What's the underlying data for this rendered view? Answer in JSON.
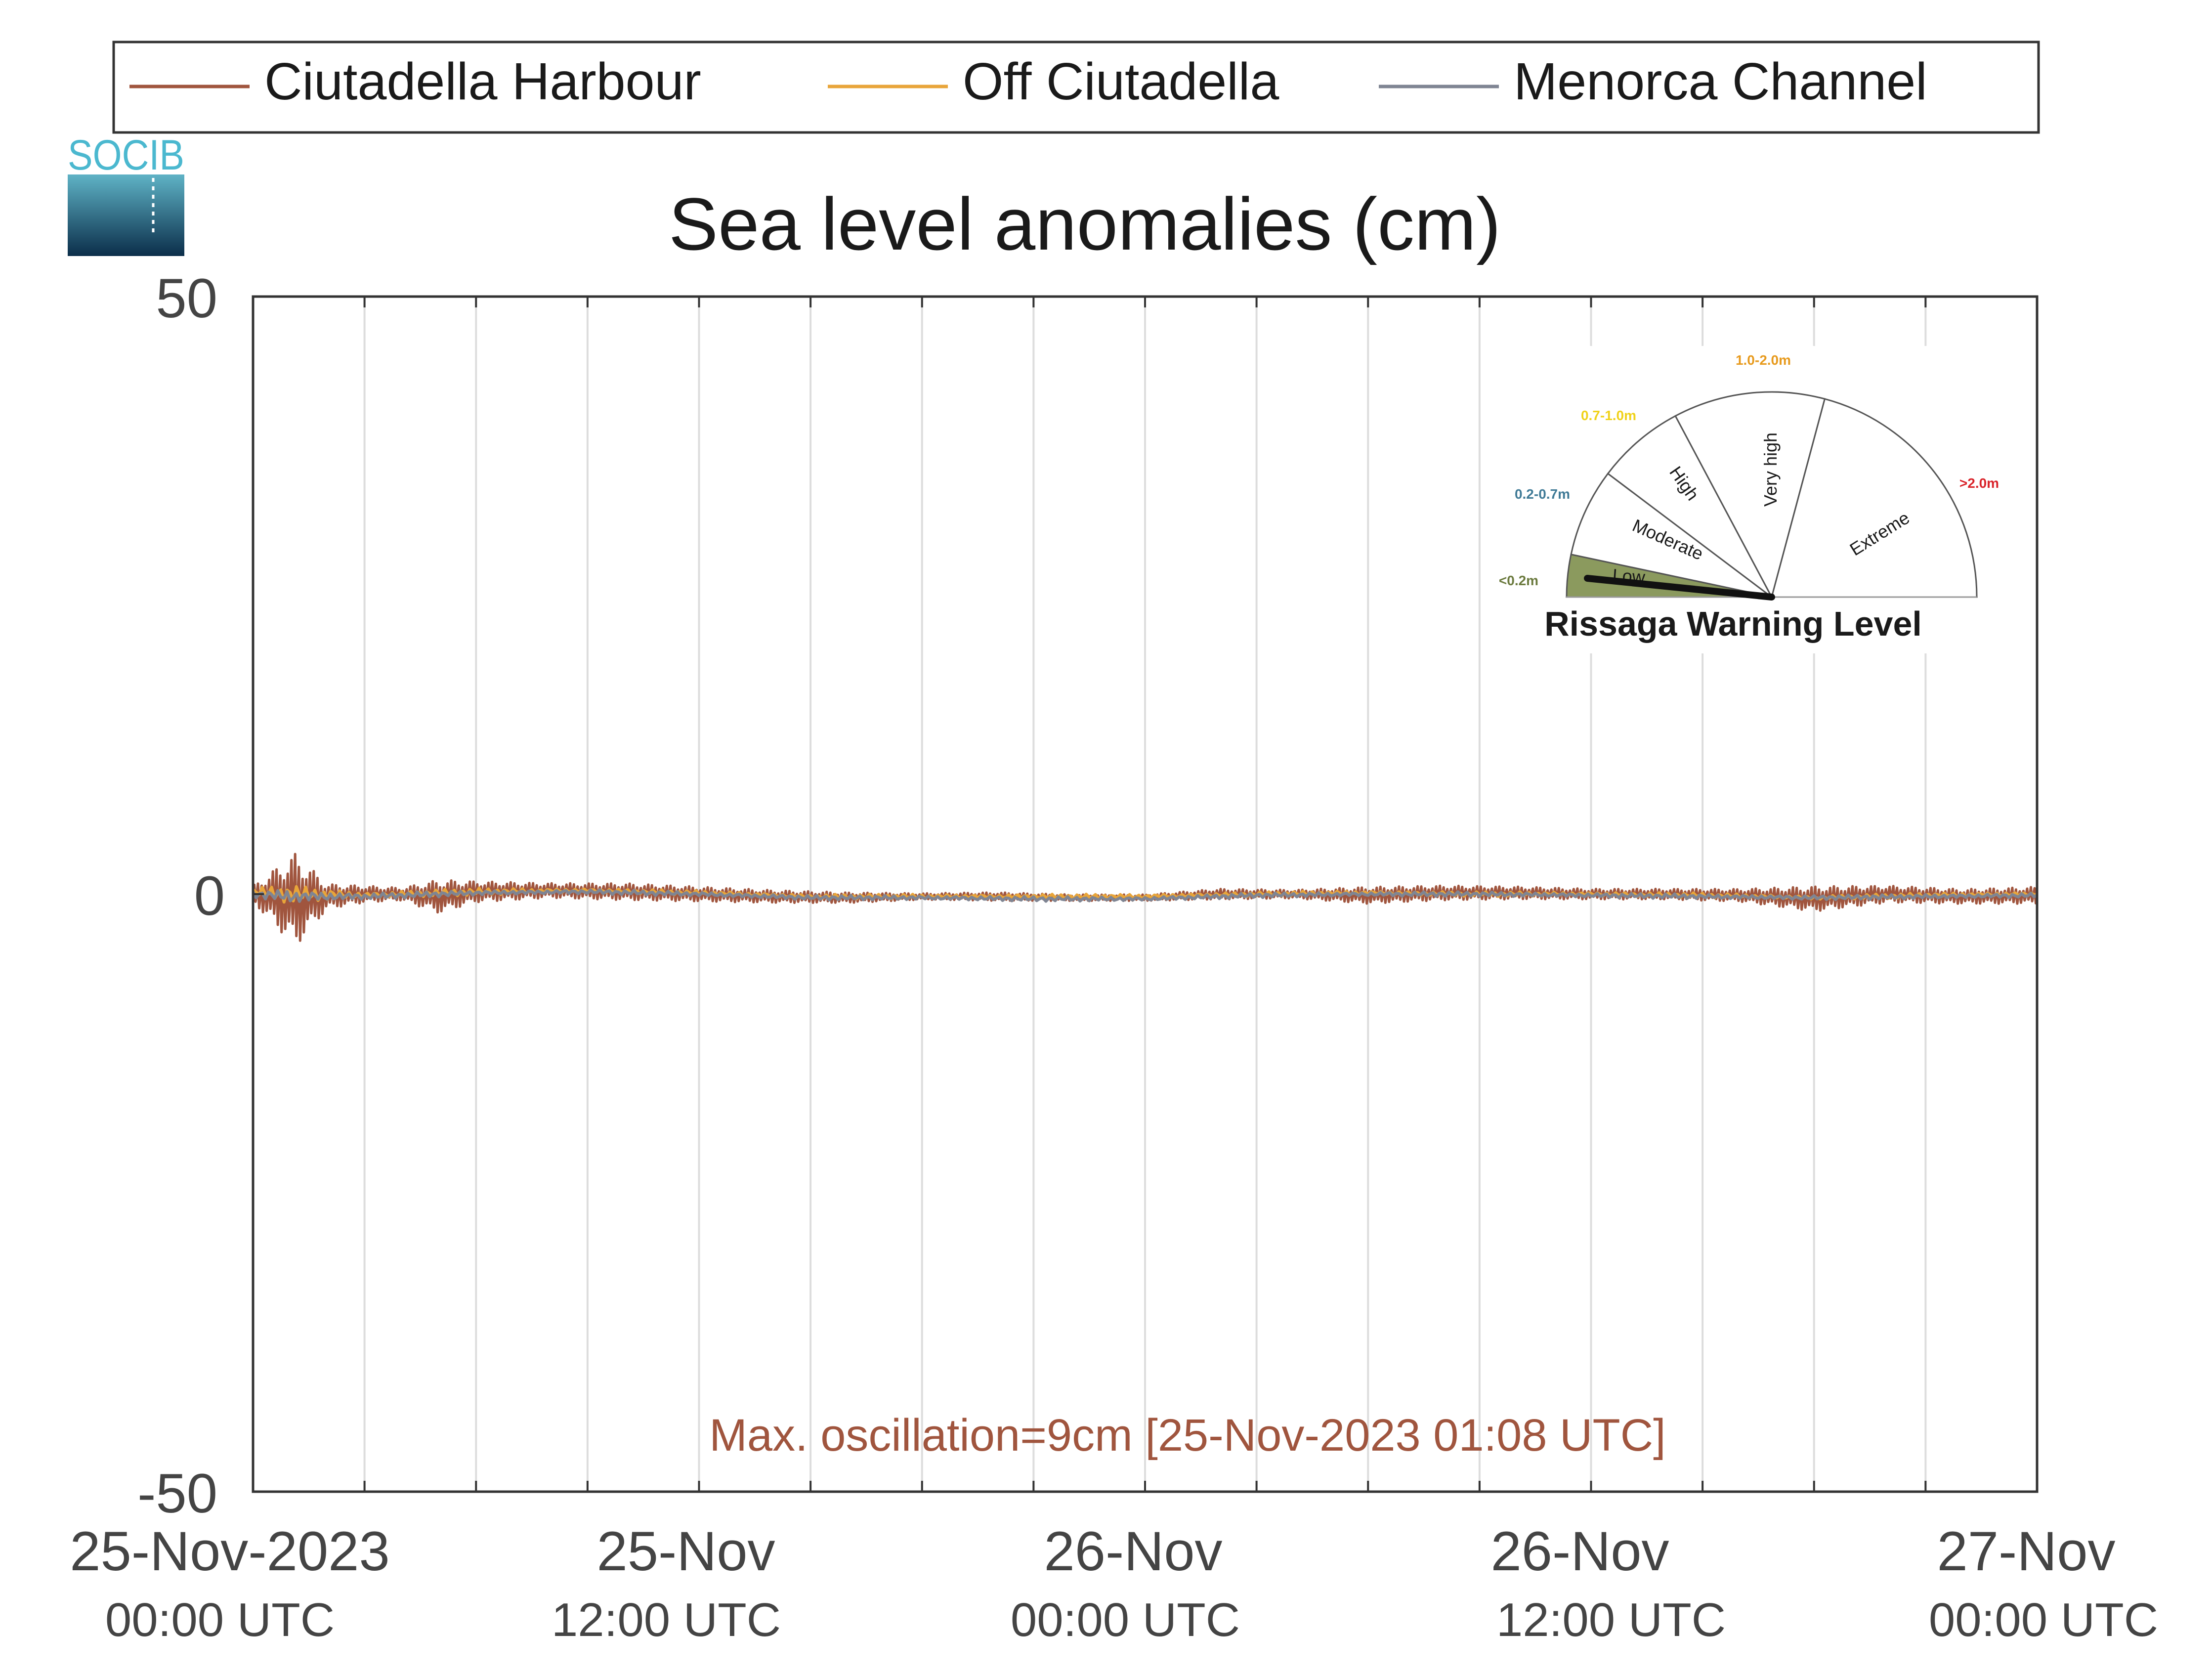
{
  "chart_data": {
    "type": "line",
    "title": "Sea level anomalies (cm)",
    "xlabel": "",
    "ylabel": "",
    "ylim": [
      -50,
      50
    ],
    "yticks": [
      -50,
      0,
      50
    ],
    "ytick_labels": [
      "-50",
      "0",
      "50"
    ],
    "xlim": [
      "2023-11-25 00:00",
      "2023-11-27 00:00"
    ],
    "xticks": [
      {
        "date": "25-Nov-2023",
        "time": "00:00 UTC"
      },
      {
        "date": "25-Nov",
        "time": "12:00 UTC"
      },
      {
        "date": "26-Nov",
        "time": "00:00 UTC"
      },
      {
        "date": "26-Nov",
        "time": "12:00 UTC"
      },
      {
        "date": "27-Nov",
        "time": "00:00 UTC"
      }
    ],
    "grid": "vertical",
    "legend": {
      "position": "top",
      "orientation": "horizontal"
    },
    "annotation": "Max. oscillation=9cm [25-Nov-2023 01:08 UTC]",
    "annotation_color": "#a0553e",
    "series": [
      {
        "name": "Ciutadella Harbour",
        "color": "#a0553e",
        "x": [
          "2023-11-25 00:00",
          "2023-11-25 01:08",
          "2023-11-25 02:00",
          "2023-11-25 03:00",
          "2023-11-25 04:00",
          "2023-11-25 05:00",
          "2023-11-25 06:00",
          "2023-11-25 08:00",
          "2023-11-25 10:00",
          "2023-11-25 12:00",
          "2023-11-25 14:00",
          "2023-11-25 16:00",
          "2023-11-25 18:00",
          "2023-11-25 20:00",
          "2023-11-25 22:00",
          "2023-11-26 00:00",
          "2023-11-26 02:00",
          "2023-11-26 04:00",
          "2023-11-26 06:00",
          "2023-11-26 08:00",
          "2023-11-26 10:00",
          "2023-11-26 12:00",
          "2023-11-26 14:00",
          "2023-11-26 16:00",
          "2023-11-26 18:00",
          "2023-11-26 20:00",
          "2023-11-26 22:00",
          "2023-11-27 00:00"
        ],
        "amplitude": [
          0.8,
          4.5,
          1.2,
          0.8,
          0.6,
          1.6,
          1.0,
          0.7,
          0.8,
          0.7,
          0.6,
          0.5,
          0.3,
          0.4,
          0.3,
          0.3,
          0.5,
          0.4,
          0.8,
          0.7,
          0.6,
          0.5,
          0.5,
          0.6,
          1.2,
          0.8,
          0.7,
          0.8
        ],
        "mean": [
          0.0,
          -0.5,
          -0.2,
          0.0,
          0.0,
          -0.2,
          0.2,
          0.3,
          0.2,
          0.0,
          -0.2,
          -0.3,
          -0.2,
          -0.2,
          -0.3,
          -0.3,
          0.0,
          0.0,
          -0.1,
          0.1,
          0.1,
          0.0,
          0.0,
          -0.1,
          -0.4,
          0.0,
          -0.2,
          -0.1
        ]
      },
      {
        "name": "Off Ciutadella",
        "color": "#e8a53a",
        "x": [
          "2023-11-25 00:00",
          "2023-11-25 01:00",
          "2023-11-25 03:00",
          "2023-11-25 06:00",
          "2023-11-25 09:00",
          "2023-11-25 12:00",
          "2023-11-25 15:00",
          "2023-11-25 18:00",
          "2023-11-25 21:00",
          "2023-11-26 00:00",
          "2023-11-26 03:00",
          "2023-11-26 06:00",
          "2023-11-26 09:00",
          "2023-11-26 12:00",
          "2023-11-26 15:00",
          "2023-11-26 18:00",
          "2023-11-26 21:00",
          "2023-11-27 00:00"
        ],
        "amplitude": [
          0.3,
          0.8,
          0.3,
          0.3,
          0.2,
          0.2,
          0.2,
          0.2,
          0.2,
          0.2,
          0.2,
          0.2,
          0.2,
          0.2,
          0.2,
          0.2,
          0.2,
          0.2
        ],
        "mean": [
          0.2,
          0.0,
          -0.1,
          0.2,
          0.3,
          0.1,
          -0.2,
          -0.2,
          -0.2,
          -0.2,
          0.0,
          0.1,
          0.0,
          0.0,
          -0.1,
          -0.3,
          -0.1,
          0.0
        ]
      },
      {
        "name": "Menorca Channel",
        "color": "#7f8593",
        "x": [
          "2023-11-25 00:00",
          "2023-11-25 01:00",
          "2023-11-25 03:00",
          "2023-11-25 06:00",
          "2023-11-25 09:00",
          "2023-11-25 12:00",
          "2023-11-25 15:00",
          "2023-11-25 18:00",
          "2023-11-25 21:00",
          "2023-11-26 00:00",
          "2023-11-26 03:00",
          "2023-11-26 06:00",
          "2023-11-26 09:00",
          "2023-11-26 12:00",
          "2023-11-26 15:00",
          "2023-11-26 18:00",
          "2023-11-26 21:00",
          "2023-11-27 00:00"
        ],
        "amplitude": [
          0.3,
          0.6,
          0.3,
          0.2,
          0.2,
          0.2,
          0.2,
          0.2,
          0.2,
          0.2,
          0.2,
          0.2,
          0.2,
          0.2,
          0.2,
          0.2,
          0.2,
          0.2
        ],
        "mean": [
          0.0,
          -0.2,
          -0.2,
          0.1,
          0.2,
          0.0,
          -0.3,
          -0.3,
          -0.4,
          -0.4,
          -0.1,
          0.0,
          0.0,
          -0.1,
          -0.2,
          -0.3,
          -0.2,
          -0.1
        ]
      }
    ]
  },
  "logo": {
    "text": "SOCIB"
  },
  "gauge": {
    "title": "Rissaga Warning Level",
    "current_level": "Low",
    "levels": [
      {
        "name": "Low",
        "range": "<0.2m",
        "range_color": "#6b7a3e",
        "fill": "#8b9a5e",
        "active": true
      },
      {
        "name": "Moderate",
        "range": "0.2-0.7m",
        "range_color": "#3f7a96",
        "fill": "#ffffff",
        "active": false
      },
      {
        "name": "High",
        "range": "0.7-1.0m",
        "range_color": "#f0d21a",
        "fill": "#ffffff",
        "active": false
      },
      {
        "name": "Very high",
        "range": "1.0-2.0m",
        "range_color": "#e79a1d",
        "fill": "#ffffff",
        "active": false
      },
      {
        "name": "Extreme",
        "range": ">2.0m",
        "range_color": "#d9232a",
        "fill": "#ffffff",
        "active": false
      }
    ]
  }
}
